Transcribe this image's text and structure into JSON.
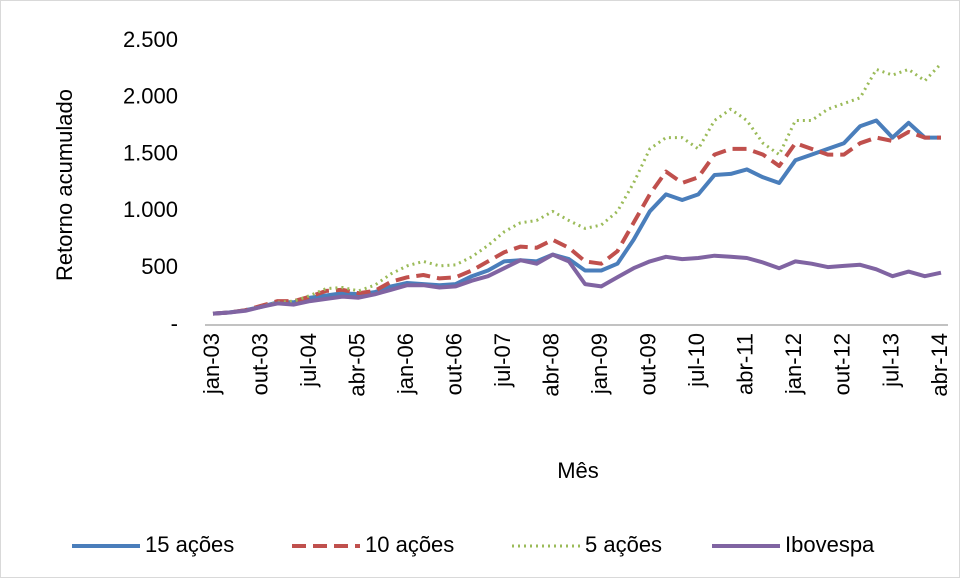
{
  "chart_data": {
    "type": "line",
    "ylabel": "Retorno acumulado",
    "xlabel": "Mês",
    "categories": [
      "jan-03",
      null,
      null,
      "out-03",
      null,
      null,
      "jul-04",
      null,
      null,
      "abr-05",
      null,
      null,
      "jan-06",
      null,
      null,
      "out-06",
      null,
      null,
      "jul-07",
      null,
      null,
      "abr-08",
      null,
      null,
      "jan-09",
      null,
      null,
      "out-09",
      null,
      null,
      "jul-10",
      null,
      null,
      "abr-11",
      null,
      null,
      "jan-12",
      null,
      null,
      "out-12",
      null,
      null,
      "jul-13",
      null,
      null,
      "abr-14"
    ],
    "series": [
      {
        "name": "15 ações",
        "color": "#4a7ebb",
        "dash": "solid",
        "values": [
          100,
          110,
          130,
          160,
          200,
          200,
          240,
          260,
          280,
          270,
          290,
          340,
          370,
          360,
          350,
          360,
          430,
          480,
          560,
          570,
          560,
          620,
          580,
          480,
          480,
          540,
          750,
          1000,
          1150,
          1100,
          1150,
          1320,
          1330,
          1370,
          1300,
          1250,
          1450,
          1500,
          1550,
          1600,
          1750,
          1800,
          1650,
          1780,
          1650,
          1650
        ]
      },
      {
        "name": "10 ações",
        "color": "#c0504d",
        "dash": "dash",
        "values": [
          100,
          110,
          130,
          170,
          210,
          210,
          250,
          300,
          310,
          280,
          300,
          380,
          420,
          440,
          410,
          420,
          480,
          560,
          640,
          690,
          680,
          750,
          680,
          560,
          540,
          650,
          900,
          1150,
          1350,
          1250,
          1300,
          1500,
          1550,
          1550,
          1500,
          1400,
          1600,
          1550,
          1500,
          1500,
          1600,
          1650,
          1620,
          1700,
          1650,
          1650
        ]
      },
      {
        "name": "5 ações",
        "color": "#9bbb59",
        "dash": "dot",
        "values": [
          100,
          110,
          130,
          165,
          200,
          210,
          260,
          320,
          330,
          300,
          350,
          450,
          520,
          560,
          520,
          530,
          600,
          700,
          820,
          900,
          920,
          1000,
          920,
          850,
          880,
          1000,
          1250,
          1550,
          1650,
          1650,
          1550,
          1800,
          1900,
          1800,
          1600,
          1500,
          1800,
          1800,
          1900,
          1950,
          2000,
          2250,
          2200,
          2250,
          2150,
          2300
        ]
      },
      {
        "name": "Ibovespa",
        "color": "#8064a2",
        "dash": "solid",
        "values": [
          100,
          110,
          125,
          160,
          190,
          180,
          210,
          230,
          250,
          240,
          270,
          310,
          350,
          350,
          330,
          340,
          390,
          430,
          500,
          570,
          540,
          620,
          560,
          360,
          340,
          420,
          500,
          560,
          600,
          580,
          590,
          610,
          600,
          590,
          550,
          500,
          560,
          540,
          510,
          520,
          530,
          490,
          430,
          470,
          430,
          460
        ]
      }
    ],
    "ylim": [
      0,
      2500
    ],
    "yticks": [
      {
        "value": 0,
        "label": "-"
      },
      500,
      {
        "value": 1000,
        "label": "1.000"
      },
      {
        "value": 1500,
        "label": "1.500"
      },
      {
        "value": 2000,
        "label": "2.000"
      },
      {
        "value": 2500,
        "label": "2.500"
      }
    ],
    "grid": false,
    "legend": "bottom"
  }
}
